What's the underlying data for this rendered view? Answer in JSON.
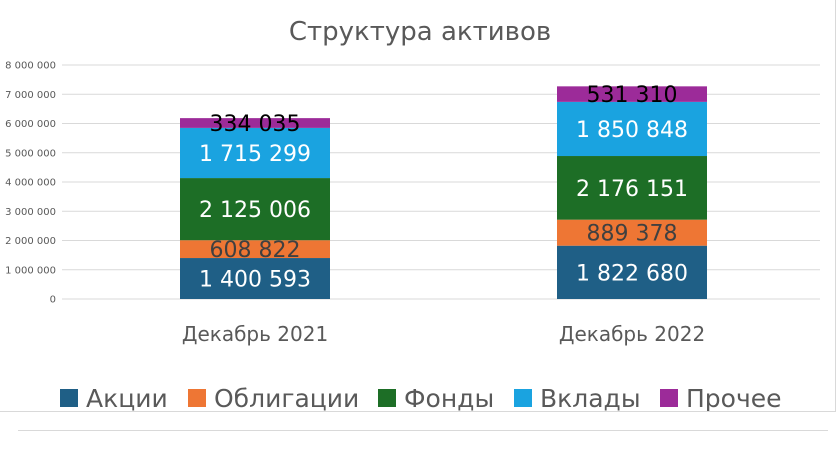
{
  "chart_data": {
    "type": "bar",
    "stacked": true,
    "title": "Структура активов",
    "xlabel": "",
    "ylabel": "",
    "ylim": [
      0,
      8000000
    ],
    "yticks": [
      0,
      1000000,
      2000000,
      3000000,
      4000000,
      5000000,
      6000000,
      7000000,
      8000000
    ],
    "ytick_labels": [
      "0",
      "1 000 000",
      "2 000 000",
      "3 000 000",
      "4 000 000",
      "5 000 000",
      "6 000 000",
      "7 000 000",
      "8 000 000"
    ],
    "grid": true,
    "legend_position": "bottom",
    "categories": [
      "Декабрь 2021",
      "Декабрь 2022"
    ],
    "series": [
      {
        "name": "Акции",
        "color": "#1f5f86",
        "values": [
          1400593,
          1822680
        ],
        "labels": [
          "1 400 593",
          "1 822 680"
        ],
        "label_color": "#ffffff"
      },
      {
        "name": "Облигации",
        "color": "#ee7634",
        "values": [
          608822,
          889378
        ],
        "labels": [
          "608 822",
          "889 378"
        ],
        "label_color": "#404040"
      },
      {
        "name": "Фонды",
        "color": "#1d6e26",
        "values": [
          2125006,
          2176151
        ],
        "labels": [
          "2 125 006",
          "2 176 151"
        ],
        "label_color": "#ffffff"
      },
      {
        "name": "Вклады",
        "color": "#1aa3e0",
        "values": [
          1715299,
          1850848
        ],
        "labels": [
          "1 715 299",
          "1 850 848"
        ],
        "label_color": "#ffffff"
      },
      {
        "name": "Прочее",
        "color": "#9c2b99",
        "values": [
          334035,
          531310
        ],
        "labels": [
          "334 035",
          "531 310"
        ],
        "label_color": "#000000"
      }
    ]
  }
}
